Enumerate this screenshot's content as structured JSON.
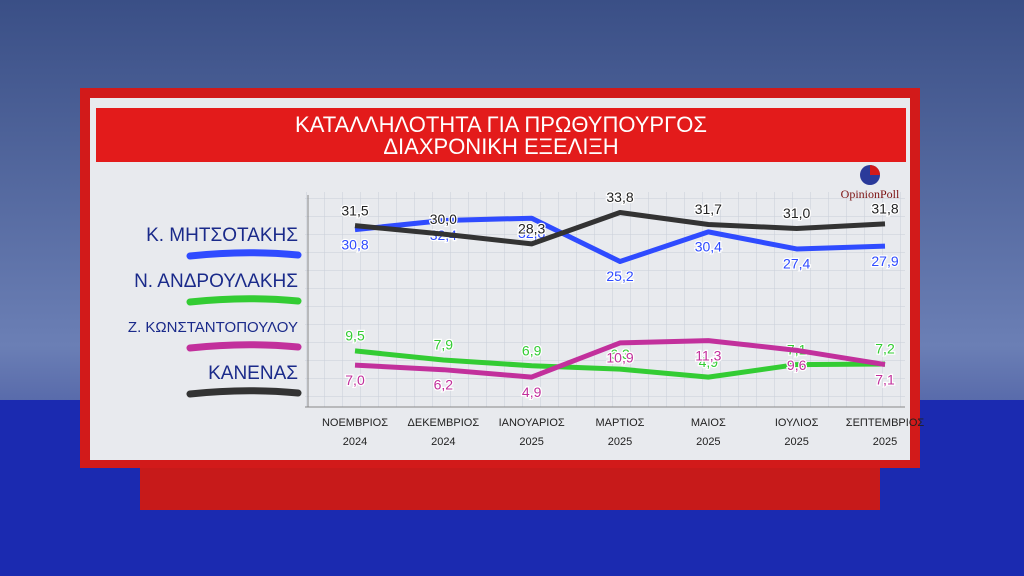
{
  "chart_data": {
    "type": "line",
    "title": "ΚΑΤΑΛΛΗΛΟΤΗΤΑ ΓΙΑ ΠΡΩΘΥΠΟΥΡΓΟΣ",
    "subtitle": "ΔΙΑΧΡΟΝΙΚΗ ΕΞΕΛΙΞΗ",
    "source": "OpinionPoll",
    "categories": [
      "ΝΟΕΜΒΡΙΟΣ\n2024",
      "ΔΕΚΕΜΒΡΙΟΣ\n2024",
      "ΙΑΝΟΥΑΡΙΟΣ\n2025",
      "ΜΑΡΤΙΟΣ\n2025",
      "ΜΑΙΟΣ\n2025",
      "ΙΟΥΛΙΟΣ\n2025",
      "ΣΕΠΤΕΜΒΡΙΟΣ\n2025"
    ],
    "series": [
      {
        "name": "Κ. ΜΗΤΣΟΤΑΚΗΣ",
        "color": "#2f4bff",
        "values": [
          30.8,
          32.4,
          32.8,
          25.2,
          30.4,
          27.4,
          27.9
        ],
        "value_labels": [
          "30,8",
          "32,4",
          "32,8",
          "25,2",
          "30,4",
          "27,4",
          "27,9"
        ]
      },
      {
        "name": "Ν. ΑΝΔΡΟΥΛΑΚΗΣ",
        "color": "#33cc33",
        "values": [
          9.5,
          7.9,
          6.9,
          6.3,
          4.9,
          7.1,
          7.2
        ],
        "value_labels": [
          "9,5",
          "7,9",
          "6,9",
          "6,3",
          "4,9",
          "7,1",
          "7,2"
        ]
      },
      {
        "name": "Ζ. ΚΩΝΣΤΑΝΤΟΠΟΥΛΟΥ",
        "color": "#c2309c",
        "values": [
          7.0,
          6.2,
          4.9,
          10.9,
          11.3,
          9.6,
          7.1
        ],
        "value_labels": [
          "7,0",
          "6,2",
          "4,9",
          "10,9",
          "11,3",
          "9,6",
          "7,1"
        ]
      },
      {
        "name": "ΚΑΝΕΝΑΣ",
        "color": "#333333",
        "values": [
          31.5,
          30.0,
          28.3,
          33.8,
          31.7,
          31.0,
          31.8
        ],
        "value_labels": [
          "31,5",
          "30,0",
          "28,3",
          "33,8",
          "31,7",
          "31,0",
          "31,8"
        ]
      }
    ],
    "ylim": [
      0,
      36
    ]
  }
}
